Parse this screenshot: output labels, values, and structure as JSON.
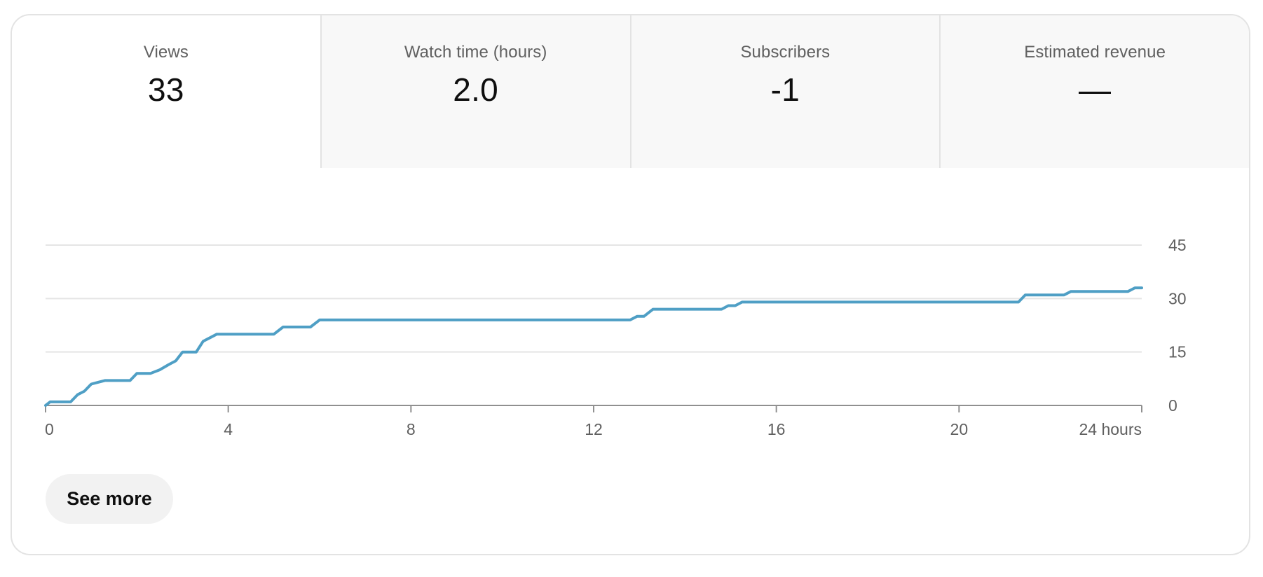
{
  "tabs": [
    {
      "label": "Views",
      "value": "33",
      "selected": true
    },
    {
      "label": "Watch time (hours)",
      "value": "2.0",
      "selected": false
    },
    {
      "label": "Subscribers",
      "value": "-1",
      "selected": false
    },
    {
      "label": "Estimated revenue",
      "value": "—",
      "selected": false
    }
  ],
  "chart_data": {
    "type": "line",
    "title": "",
    "xlabel": "",
    "ylabel": "",
    "xlim": [
      0,
      24
    ],
    "ylim": [
      0,
      45
    ],
    "x_ticks": [
      0,
      4,
      8,
      12,
      16,
      20,
      24
    ],
    "x_tick_labels": [
      "0",
      "4",
      "8",
      "12",
      "16",
      "20",
      "24 hours"
    ],
    "y_ticks": [
      0,
      15,
      30,
      45
    ],
    "y_tick_labels": [
      "0",
      "15",
      "30",
      "45"
    ],
    "grid": true,
    "legend": "none",
    "color": "#4f9fc5",
    "series": [
      {
        "x": [
          0,
          0.1,
          0.55,
          0.7,
          0.85,
          1.0,
          1.15,
          1.3,
          1.85,
          2.0,
          2.3,
          2.5,
          2.7,
          2.85,
          3.0,
          3.3,
          3.45,
          3.6,
          3.75,
          5.0,
          5.2,
          5.8,
          6.0,
          12.8,
          12.95,
          13.1,
          13.3,
          14.8,
          14.95,
          15.1,
          15.25,
          21.3,
          21.45,
          22.3,
          22.45,
          23.7,
          23.85,
          24.0
        ],
        "y": [
          0,
          1,
          1,
          3,
          4,
          6,
          6.5,
          7,
          7,
          9,
          9,
          10,
          11.5,
          12.5,
          15,
          15,
          18,
          19,
          20,
          20,
          22,
          22,
          24,
          24,
          25,
          25,
          27,
          27,
          28,
          28,
          29,
          29,
          31,
          31,
          32,
          32,
          33,
          33
        ]
      }
    ]
  },
  "see_more_label": "See more"
}
